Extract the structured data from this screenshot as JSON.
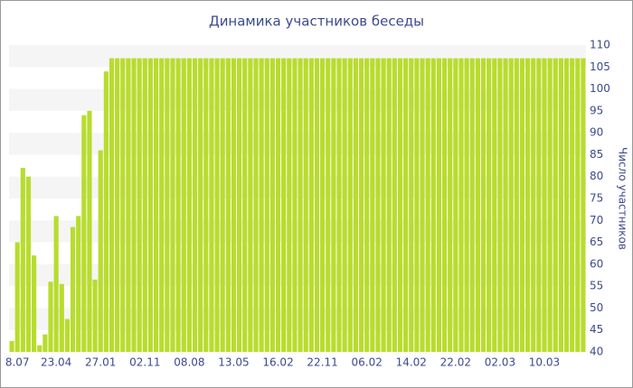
{
  "chart_data": {
    "type": "bar",
    "title": "Динамика участников беседы",
    "y_axis_label": "Число участников",
    "categories": [
      null,
      "8.07",
      null,
      null,
      null,
      null,
      null,
      null,
      "23.04",
      null,
      null,
      null,
      null,
      null,
      null,
      null,
      "27.01",
      null,
      null,
      null,
      null,
      null,
      null,
      null,
      "02.11",
      null,
      null,
      null,
      null,
      null,
      null,
      null,
      "08.08",
      null,
      null,
      null,
      null,
      null,
      null,
      null,
      "13.05",
      null,
      null,
      null,
      null,
      null,
      null,
      null,
      "16.02",
      null,
      null,
      null,
      null,
      null,
      null,
      null,
      "22.11",
      null,
      null,
      null,
      null,
      null,
      null,
      null,
      "06.02",
      null,
      null,
      null,
      null,
      null,
      null,
      null,
      "14.02",
      null,
      null,
      null,
      null,
      null,
      null,
      null,
      "22.02",
      null,
      null,
      null,
      null,
      null,
      null,
      null,
      "02.03",
      null,
      null,
      null,
      null,
      null,
      null,
      null,
      "10.03",
      null,
      null,
      null,
      null,
      null,
      null,
      null
    ],
    "values": [
      42.5,
      65,
      82,
      80,
      62,
      41.5,
      44,
      56,
      71,
      55.5,
      47.5,
      68.5,
      71,
      94,
      95,
      56.5,
      86,
      104,
      107,
      107,
      107,
      107,
      107,
      107,
      107,
      107,
      107,
      107,
      107,
      107,
      107,
      107,
      107,
      107,
      107,
      107,
      107,
      107,
      107,
      107,
      107,
      107,
      107,
      107,
      107,
      107,
      107,
      107,
      107,
      107,
      107,
      107,
      107,
      107,
      107,
      107,
      107,
      107,
      107,
      107,
      107,
      107,
      107,
      107,
      107,
      107,
      107,
      107,
      107,
      107,
      107,
      107,
      107,
      107,
      107,
      107,
      107,
      107,
      107,
      107,
      107,
      107,
      107,
      107,
      107,
      107,
      107,
      107,
      107,
      107,
      107,
      107,
      107,
      107,
      107,
      107,
      107,
      107,
      107,
      107,
      107,
      107,
      107,
      107
    ],
    "color": "#b8dc2e",
    "ylim": [
      40,
      110
    ],
    "yticks": [
      40,
      45,
      50,
      55,
      60,
      65,
      70,
      75,
      80,
      85,
      90,
      95,
      100,
      105,
      110
    ],
    "grid": true,
    "y_axis_side": "right"
  }
}
